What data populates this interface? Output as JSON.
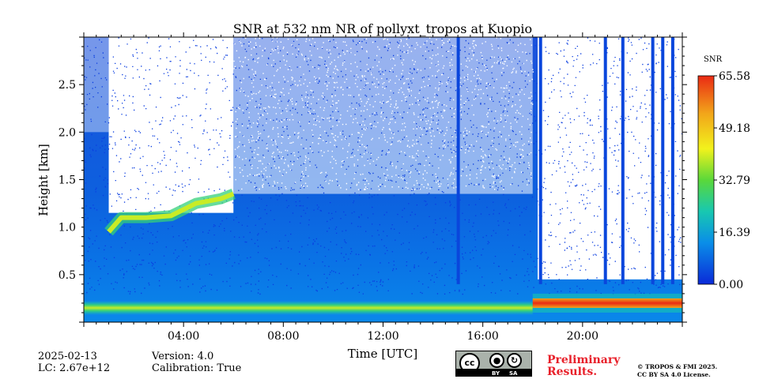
{
  "chart_data": {
    "type": "heatmap",
    "title": "SNR at 532 nm NR of pollyxt_tropos at Kuopio",
    "xlabel": "Time [UTC]",
    "ylabel": "Height [km]",
    "xlim_hours": [
      0,
      24
    ],
    "ylim_km": [
      0,
      3.0
    ],
    "x_ticks": [
      {
        "hour": 4,
        "label": "04:00"
      },
      {
        "hour": 8,
        "label": "08:00"
      },
      {
        "hour": 12,
        "label": "12:00"
      },
      {
        "hour": 16,
        "label": "16:00"
      },
      {
        "hour": 20,
        "label": "20:00"
      }
    ],
    "y_ticks": [
      {
        "km": 0.5,
        "label": "0.5"
      },
      {
        "km": 1.0,
        "label": "1.0"
      },
      {
        "km": 1.5,
        "label": "1.5"
      },
      {
        "km": 2.0,
        "label": "2.0"
      },
      {
        "km": 2.5,
        "label": "2.5"
      }
    ],
    "colorbar": {
      "label": "SNR",
      "range": [
        0.0,
        65.58
      ],
      "ticks": [
        {
          "value": 0.0,
          "label": "0.00"
        },
        {
          "value": 16.39,
          "label": "16.39"
        },
        {
          "value": 32.79,
          "label": "32.79"
        },
        {
          "value": 49.18,
          "label": "49.18"
        },
        {
          "value": 65.58,
          "label": "65.58"
        }
      ],
      "colors": [
        "#0a2ad8",
        "#0a8ee8",
        "#18c8b0",
        "#5ad83a",
        "#f2f21c",
        "#f2a51a",
        "#ea2a14"
      ]
    },
    "features": {
      "surface_layer_km": 0.15,
      "cloud_layer": [
        {
          "hour": 1.0,
          "km": 0.95
        },
        {
          "hour": 1.5,
          "km": 1.1
        },
        {
          "hour": 2.5,
          "km": 1.1
        },
        {
          "hour": 3.5,
          "km": 1.12
        },
        {
          "hour": 4.5,
          "km": 1.25
        },
        {
          "hour": 5.5,
          "km": 1.3
        },
        {
          "hour": 6.0,
          "km": 1.35
        }
      ],
      "low_cloud_start_hour": 18.0,
      "low_cloud_km": 0.2,
      "precip_columns_hours": [
        15.0,
        18.3,
        20.9,
        21.6,
        22.8,
        23.2,
        23.6
      ]
    }
  },
  "footer": {
    "date": "2025-02-13",
    "lc": "LC: 2.67e+12",
    "version": "Version: 4.0",
    "calibration": "Calibration: True",
    "preliminary_line1": "Preliminary",
    "preliminary_line2": "Results.",
    "copyright_line1": "© TROPOS & FMI 2025.",
    "copyright_line2": "CC BY SA 4.0 License.",
    "license_badge": {
      "cc": "cc",
      "by": "BY",
      "sa": "SA"
    }
  }
}
